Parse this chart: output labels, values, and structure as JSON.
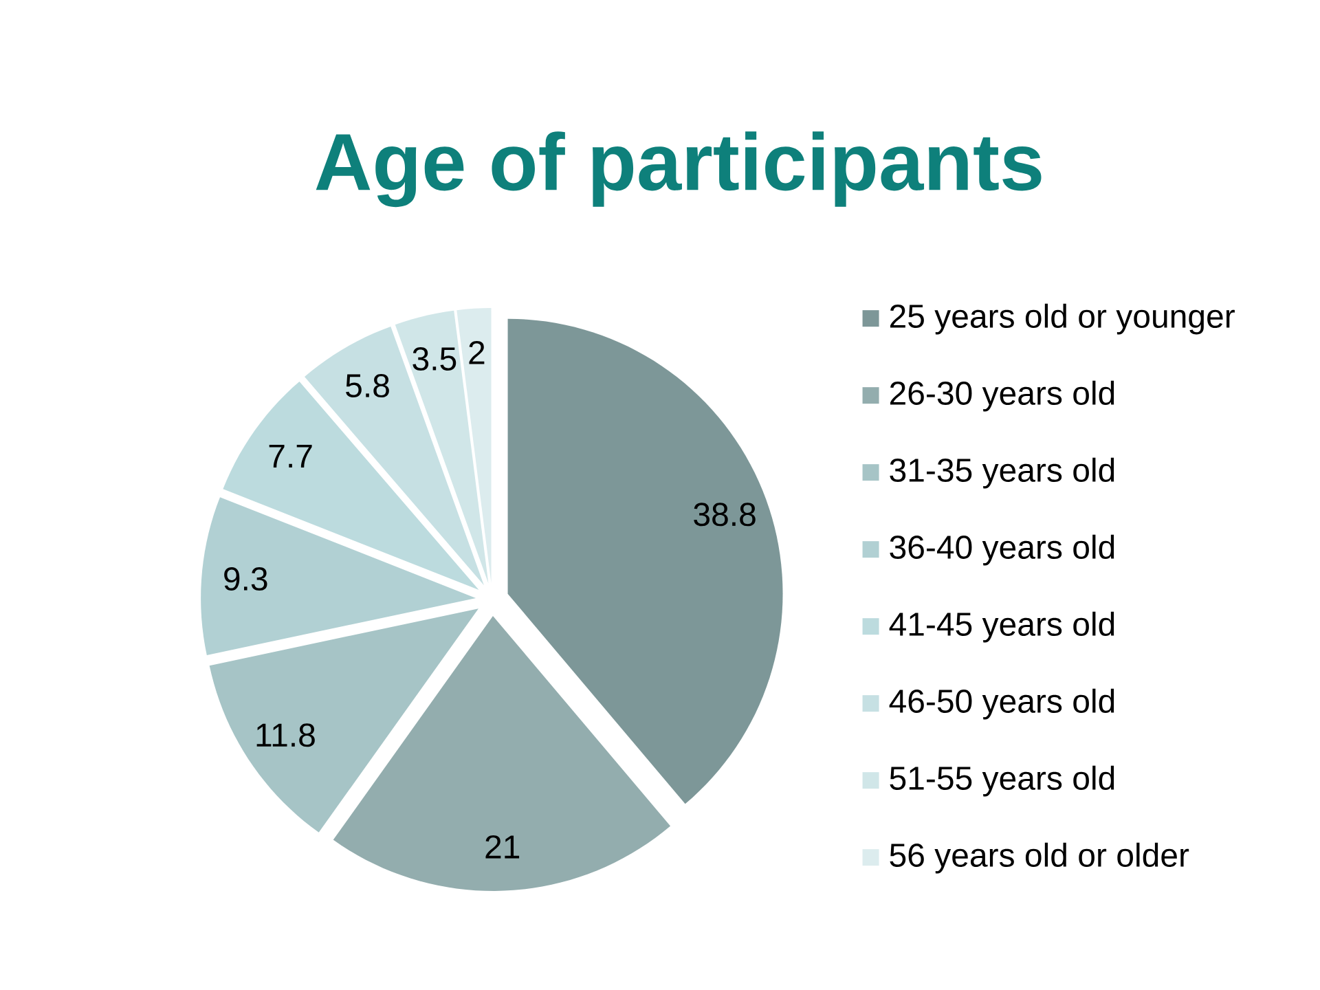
{
  "chart_data": {
    "type": "pie",
    "title": "Age of participants",
    "categories": [
      "25 years old or younger",
      "26-30 years old",
      "31-35 years old",
      "36-40 years old",
      "41-45 years old",
      "46-50 years old",
      "51-55 years old",
      "56 years old or older"
    ],
    "values": [
      38.8,
      21,
      11.8,
      9.3,
      7.7,
      5.8,
      3.5,
      2
    ],
    "colors": [
      "#7d9798",
      "#93adae",
      "#a6c4c6",
      "#b1d0d3",
      "#bcdbde",
      "#c6e0e3",
      "#d0e6e8",
      "#dcecee"
    ],
    "data_labels": true,
    "legend": "right"
  }
}
